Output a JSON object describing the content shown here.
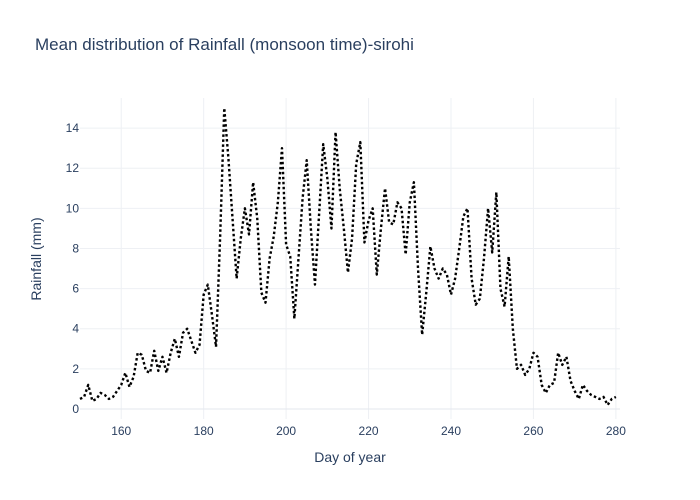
{
  "chart_data": {
    "type": "line",
    "title": "Mean distribution of Rainfall (monsoon time)-sirohi",
    "xlabel": "Day of year",
    "ylabel": "Rainfall (mm)",
    "xlim": [
      150,
      281
    ],
    "ylim": [
      -0.5,
      15.5
    ],
    "xticks": [
      160,
      180,
      200,
      220,
      240,
      260,
      280
    ],
    "yticks": [
      0,
      2,
      4,
      6,
      8,
      10,
      12,
      14
    ],
    "grid": true,
    "line_color": "#000000",
    "line_style": "dotted",
    "series": [
      {
        "x": [
          150,
          151,
          152,
          153,
          154,
          155,
          156,
          157,
          158,
          159,
          160,
          161,
          162,
          163,
          164,
          165,
          166,
          167,
          168,
          169,
          170,
          171,
          172,
          173,
          174,
          175,
          176,
          177,
          178,
          179,
          180,
          181,
          182,
          183,
          184,
          185,
          186,
          187,
          188,
          189,
          190,
          191,
          192,
          193,
          194,
          195,
          196,
          197,
          198,
          199,
          200,
          201,
          202,
          203,
          204,
          205,
          206,
          207,
          208,
          209,
          210,
          211,
          212,
          213,
          214,
          215,
          216,
          217,
          218,
          219,
          220,
          221,
          222,
          223,
          224,
          225,
          226,
          227,
          228,
          229,
          230,
          231,
          232,
          233,
          234,
          235,
          236,
          237,
          238,
          239,
          240,
          241,
          242,
          243,
          244,
          245,
          246,
          247,
          248,
          249,
          250,
          251,
          252,
          253,
          254,
          255,
          256,
          257,
          258,
          259,
          260,
          261,
          262,
          263,
          264,
          265,
          266,
          267,
          268,
          269,
          270,
          271,
          272,
          273,
          274,
          275,
          276,
          277,
          278,
          279,
          280
        ],
        "y": [
          0.5,
          0.6,
          1.2,
          0.4,
          0.5,
          0.8,
          0.7,
          0.5,
          0.6,
          0.9,
          1.2,
          1.8,
          1.1,
          1.6,
          2.8,
          2.7,
          1.9,
          1.8,
          2.9,
          1.9,
          2.6,
          1.8,
          2.8,
          3.5,
          2.6,
          3.8,
          4.0,
          3.4,
          2.8,
          3.2,
          5.7,
          6.2,
          4.7,
          3.1,
          8.6,
          15.0,
          12.5,
          9.5,
          6.5,
          8.5,
          10.0,
          8.7,
          11.3,
          9.5,
          5.8,
          5.3,
          7.5,
          8.6,
          10.3,
          13.0,
          8.2,
          7.6,
          4.5,
          7.5,
          10.5,
          12.4,
          9.0,
          6.2,
          9.7,
          13.2,
          11.5,
          9.0,
          13.8,
          11.0,
          9.0,
          6.8,
          8.5,
          12.2,
          13.3,
          8.3,
          9.4,
          10.0,
          6.7,
          9.0,
          11.0,
          9.3,
          9.2,
          10.3,
          10.0,
          7.7,
          10.3,
          11.3,
          7.0,
          3.7,
          5.8,
          8.1,
          7.0,
          6.5,
          7.0,
          6.7,
          5.7,
          6.5,
          8.0,
          9.6,
          10.0,
          6.5,
          5.2,
          5.5,
          7.5,
          10.0,
          7.8,
          10.8,
          6.0,
          5.1,
          7.6,
          4.0,
          2.0,
          2.2,
          1.7,
          2.0,
          2.8,
          2.6,
          1.2,
          0.8,
          1.2,
          1.3,
          2.8,
          2.2,
          2.6,
          1.4,
          0.9,
          0.5,
          1.2,
          0.9,
          0.7,
          0.6,
          0.5,
          0.6,
          0.2,
          0.5,
          0.6
        ]
      }
    ]
  }
}
